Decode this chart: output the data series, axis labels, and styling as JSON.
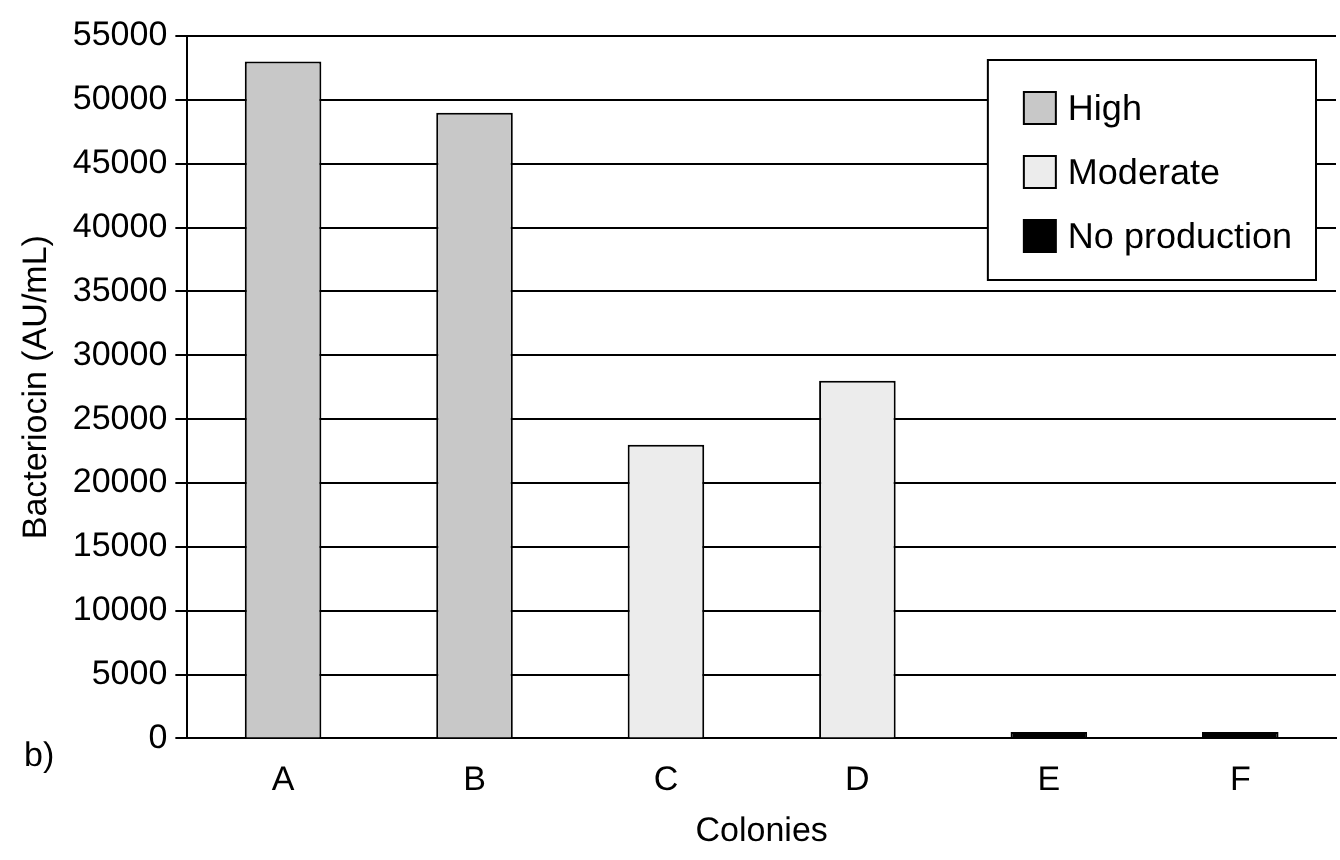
{
  "chart_data": {
    "type": "bar",
    "xlabel": "Colonies",
    "ylabel": "Bacteriocin (AU/mL)",
    "categories": [
      "A",
      "B",
      "C",
      "D",
      "E",
      "F"
    ],
    "series": [
      {
        "name": "High",
        "color": "#c8c8c8",
        "values": [
          53000,
          49000,
          null,
          null,
          null,
          null
        ]
      },
      {
        "name": "Moderate",
        "color": "#ececec",
        "values": [
          null,
          null,
          23000,
          28000,
          null,
          null
        ]
      },
      {
        "name": "No production",
        "color": "#000000",
        "values": [
          null,
          null,
          null,
          null,
          500,
          500
        ]
      }
    ],
    "ylim": [
      0,
      55000
    ],
    "yticks": [
      0,
      5000,
      10000,
      15000,
      20000,
      25000,
      30000,
      35000,
      40000,
      45000,
      50000,
      55000
    ],
    "grid": "y",
    "legend": "top right",
    "annotations": [
      "b)"
    ]
  }
}
